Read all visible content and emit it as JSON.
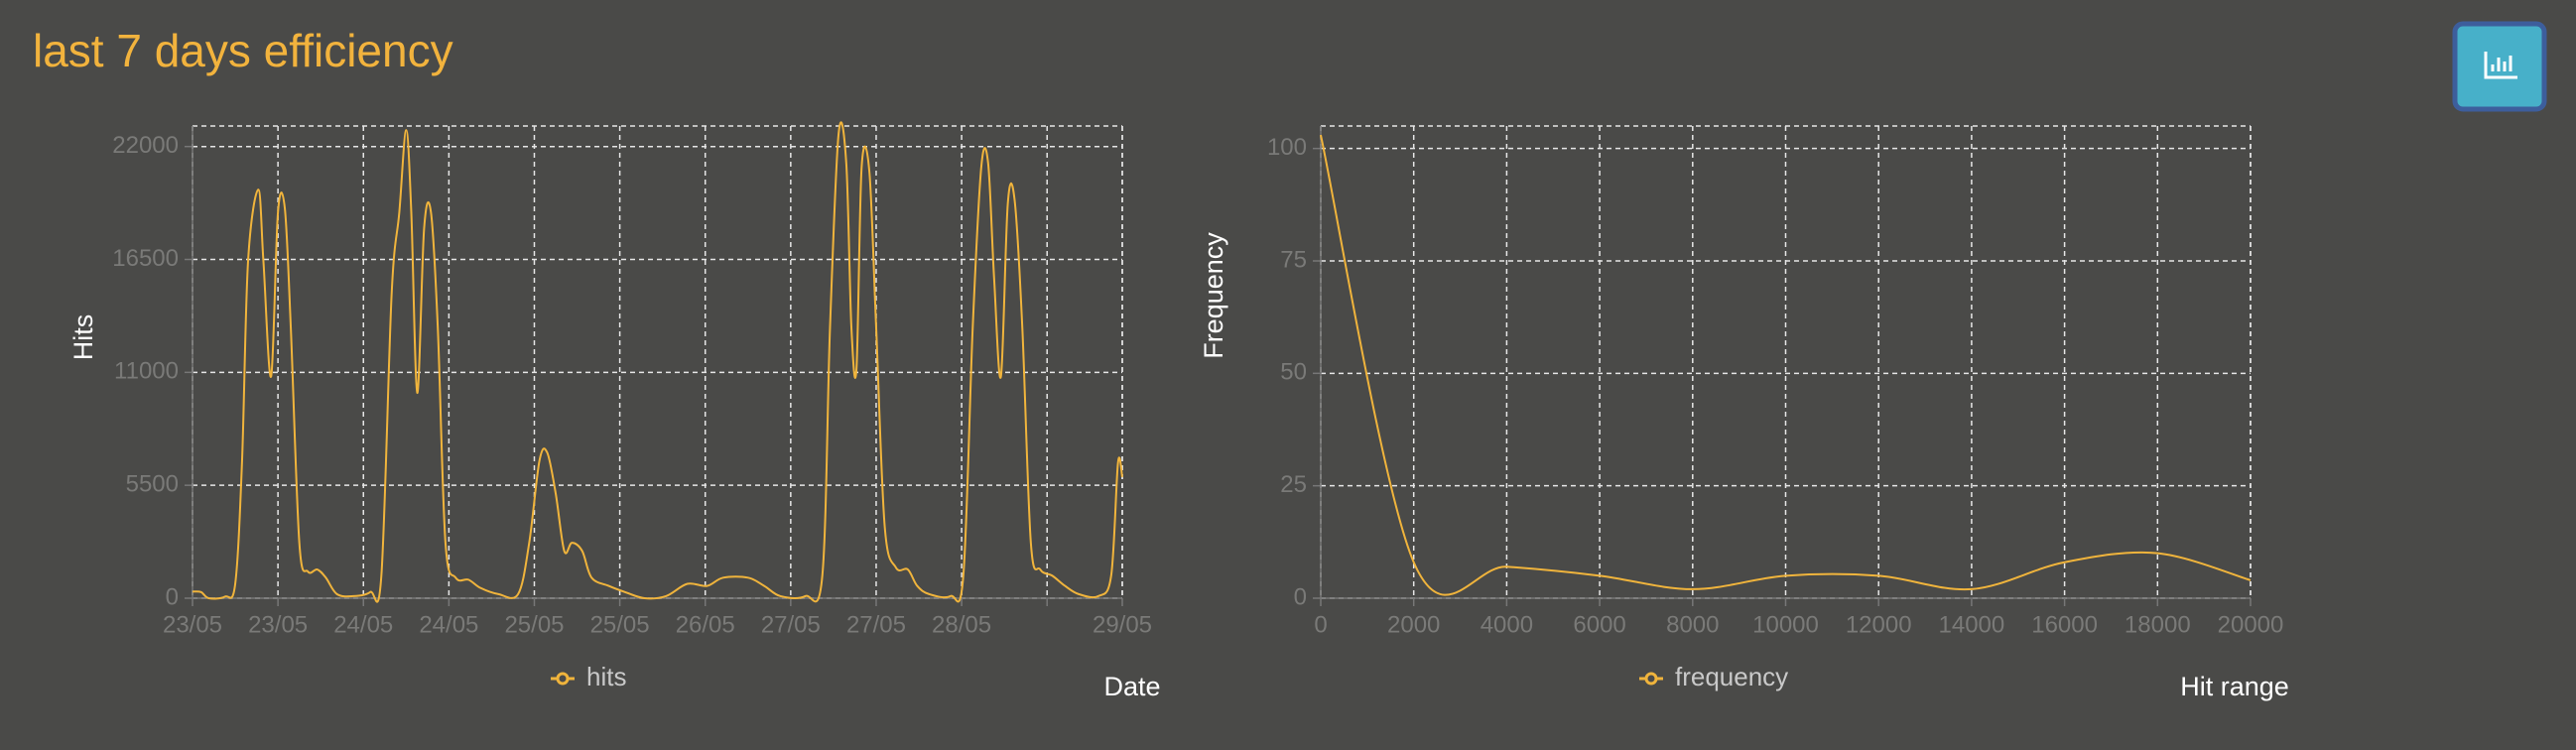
{
  "header": {
    "title": "last 7 days efficiency"
  },
  "chart_data": [
    {
      "type": "line",
      "xlabel": "Date",
      "ylabel": "Hits",
      "grid": true,
      "legend": "bottom",
      "x": [
        0,
        0.1,
        0.19,
        0.38,
        0.5,
        0.58,
        0.65,
        0.77,
        0.83,
        0.92,
        1.0,
        1.08,
        1.15,
        1.25,
        1.35,
        1.46,
        1.56,
        1.69,
        1.88,
        2.08,
        2.21,
        2.33,
        2.42,
        2.5,
        2.56,
        2.63,
        2.71,
        2.79,
        2.87,
        2.96,
        3.08,
        3.23,
        3.37,
        3.58,
        3.81,
        3.94,
        4.06,
        4.15,
        4.25,
        4.35,
        4.44,
        4.56,
        4.67,
        4.87,
        5.06,
        5.29,
        5.54,
        5.79,
        6.02,
        6.21,
        6.5,
        6.69,
        6.88,
        7.17,
        7.37,
        7.46,
        7.56,
        7.65,
        7.71,
        7.77,
        7.83,
        7.92,
        8.0,
        8.1,
        8.23,
        8.37,
        8.48,
        8.62,
        8.87,
        9.02,
        9.13,
        9.23,
        9.31,
        9.38,
        9.46,
        9.54,
        9.62,
        9.71,
        9.81,
        9.92,
        10.06,
        10.21,
        10.37,
        10.6,
        10.75,
        10.83,
        10.88
      ],
      "series": [
        {
          "name": "hits",
          "color": "#f0b43c",
          "values": [
            320,
            300,
            0,
            80,
            700,
            6700,
            16400,
            19900,
            16400,
            10800,
            18800,
            19000,
            13200,
            2700,
            1300,
            1400,
            1000,
            200,
            100,
            300,
            1100,
            14800,
            18800,
            22800,
            18800,
            10000,
            18000,
            18800,
            13200,
            2700,
            1000,
            900,
            500,
            200,
            200,
            2700,
            6700,
            7100,
            5100,
            2300,
            2700,
            2300,
            1000,
            600,
            300,
            0,
            100,
            700,
            600,
            1000,
            1000,
            600,
            100,
            100,
            1100,
            13200,
            22600,
            21200,
            13200,
            11200,
            21000,
            20800,
            13200,
            3500,
            1500,
            1400,
            600,
            200,
            100,
            1100,
            13200,
            21000,
            21200,
            15600,
            10800,
            19200,
            19400,
            13200,
            2700,
            1400,
            1100,
            600,
            200,
            100,
            1100,
            6600,
            5900
          ]
        }
      ],
      "xlim": [
        0,
        10.88
      ],
      "xticks": [
        {
          "value": 0,
          "label": "23/05"
        },
        {
          "value": 1,
          "label": "23/05"
        },
        {
          "value": 2,
          "label": "24/05"
        },
        {
          "value": 3,
          "label": "24/05"
        },
        {
          "value": 4,
          "label": "25/05"
        },
        {
          "value": 5,
          "label": "25/05"
        },
        {
          "value": 6,
          "label": "26/05"
        },
        {
          "value": 7,
          "label": "27/05"
        },
        {
          "value": 8,
          "label": "27/05"
        },
        {
          "value": 9,
          "label": "28/05"
        },
        {
          "value": 10,
          "label": null
        },
        {
          "value": 10.88,
          "label": "29/05"
        }
      ],
      "ylim": [
        0,
        23000
      ],
      "yticks": [
        0,
        5500,
        11000,
        16500,
        22000
      ]
    },
    {
      "type": "line",
      "xlabel": "Hit range",
      "ylabel": "Frequency",
      "grid": true,
      "legend": "bottom",
      "x": [
        0,
        2000,
        4000,
        6000,
        8000,
        10000,
        12000,
        14000,
        16000,
        18000,
        20000
      ],
      "series": [
        {
          "name": "frequency",
          "color": "#f0b43c",
          "values": [
            103,
            8,
            7,
            5,
            2,
            5,
            5,
            2,
            8,
            10,
            4
          ]
        }
      ],
      "xlim": [
        0,
        20000
      ],
      "xticks": [
        0,
        2000,
        4000,
        6000,
        8000,
        10000,
        12000,
        14000,
        16000,
        18000,
        20000
      ],
      "ylim": [
        0,
        105
      ],
      "yticks": [
        0,
        25,
        50,
        75,
        100
      ]
    }
  ]
}
